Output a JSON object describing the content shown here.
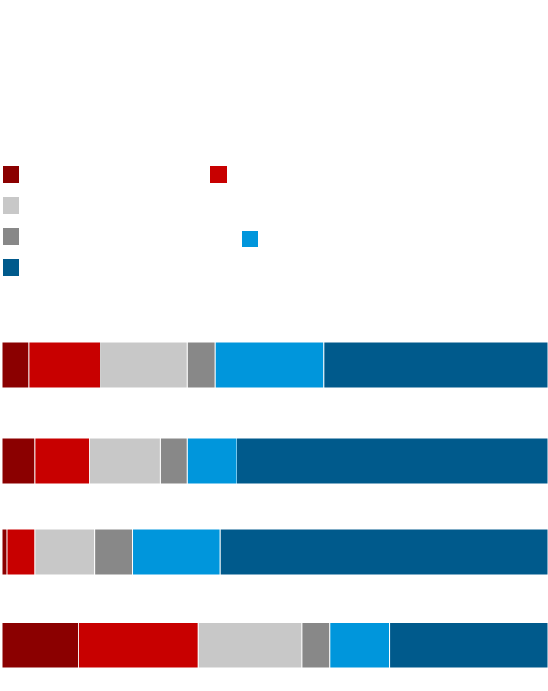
{
  "chart_data": {
    "type": "bar",
    "orientation": "horizontal",
    "stacked": true,
    "categories": [
      null,
      null,
      null,
      null
    ],
    "xlim": [
      0,
      100
    ],
    "series": [
      {
        "color": "#8b0000",
        "values": [
          5,
          6,
          1,
          14
        ]
      },
      {
        "color": "#c80000",
        "values": [
          13,
          10,
          5,
          22
        ]
      },
      {
        "color": "#c8c8c8",
        "values": [
          16,
          13,
          11,
          19
        ]
      },
      {
        "color": "#888888",
        "values": [
          5,
          5,
          7,
          5
        ]
      },
      {
        "color": "#0096dc",
        "values": [
          20,
          9,
          16,
          11
        ]
      },
      {
        "color": "#005a8c",
        "values": [
          41,
          57,
          60,
          29
        ]
      }
    ]
  }
}
